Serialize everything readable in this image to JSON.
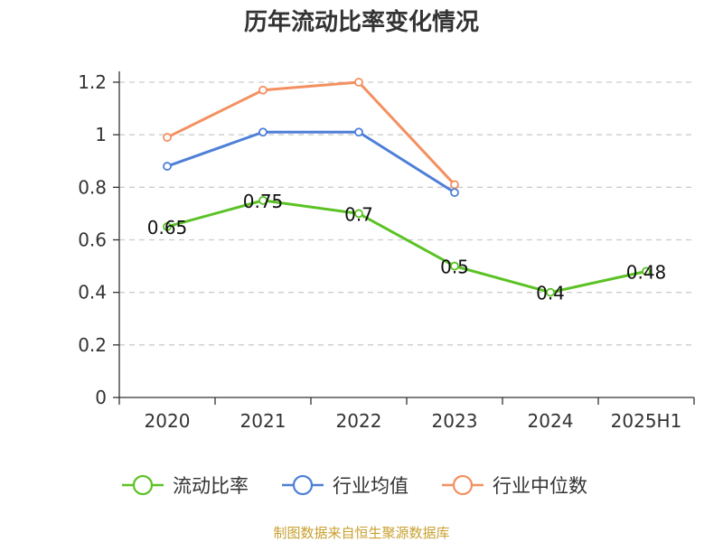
{
  "chart_data": {
    "type": "line",
    "title": "历年流动比率变化情况",
    "categories": [
      "2020",
      "2021",
      "2022",
      "2023",
      "2024",
      "2025H1"
    ],
    "ylim": [
      0,
      1.2
    ],
    "yticks": [
      "0",
      "0.2",
      "0.4",
      "0.6",
      "0.8",
      "1",
      "1.2"
    ],
    "grid": true,
    "legend_position": "bottom",
    "series": [
      {
        "name": "流动比率",
        "color": "#5bc225",
        "values": [
          0.65,
          0.75,
          0.7,
          0.5,
          0.4,
          0.48
        ],
        "labels": [
          "0.65",
          "0.75",
          "0.7",
          "0.5",
          "0.4",
          "0.48"
        ]
      },
      {
        "name": "行业均值",
        "color": "#4e7fd8",
        "values": [
          0.88,
          1.01,
          1.01,
          0.78,
          null,
          null
        ]
      },
      {
        "name": "行业中位数",
        "color": "#f49060",
        "values": [
          0.99,
          1.17,
          1.2,
          0.81,
          null,
          null
        ]
      }
    ]
  },
  "footer": {
    "source": "制图数据来自恒生聚源数据库"
  }
}
